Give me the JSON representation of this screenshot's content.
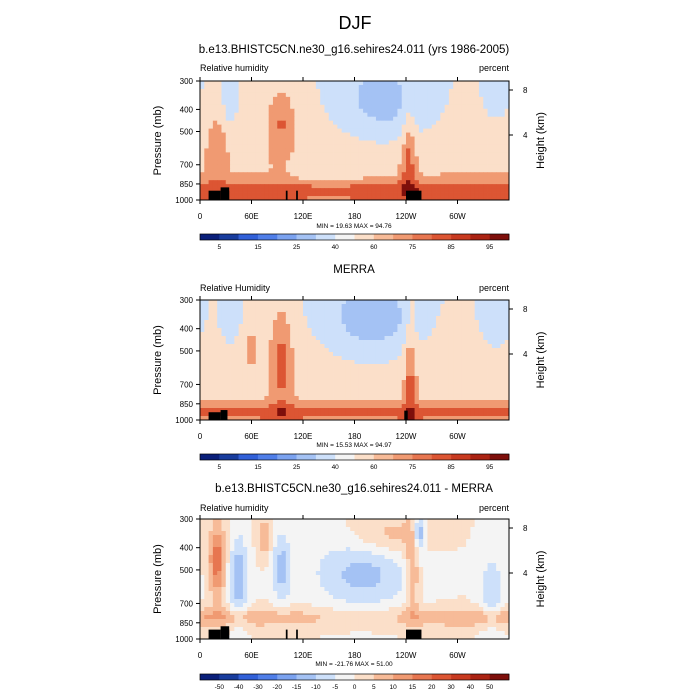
{
  "figure": {
    "title": "DJF"
  },
  "colorbar_colors": [
    "#0a1f7a",
    "#183d9e",
    "#3160d8",
    "#4f7ee8",
    "#7ba2ef",
    "#a4c2f4",
    "#cde0fa",
    "#f4f4f4",
    "#fbdfc9",
    "#f7bb98",
    "#f09a72",
    "#e77650",
    "#dc5533",
    "#c83a20",
    "#ab2313",
    "#7e0f0b"
  ],
  "panel_labels_common": {
    "ylabel_left": "Pressure (mb)",
    "ylabel_right": "Height (km)",
    "units": "percent"
  },
  "chart_data": [
    {
      "type": "heatmap",
      "title": "b.e13.BHISTC5CN.ne30_g16.sehires24.011 (yrs 1986-2005)",
      "subtitle_left": "Relative humidity",
      "subtitle_right": "percent",
      "xlabel": "",
      "ylabel": "Pressure (mb)",
      "ylabel_right": "Height (km)",
      "x_ticks": [
        "0",
        "60E",
        "120E",
        "180",
        "120W",
        "60W"
      ],
      "y_ticks": [
        "300",
        "400",
        "500",
        "700",
        "850",
        "1000"
      ],
      "y_ticks_right": [
        "8",
        "4"
      ],
      "stats": "MIN = 19.63  MAX = 94.76",
      "min": 19.63,
      "max": 94.76,
      "colorbar_labels": [
        "5",
        "15",
        "25",
        "40",
        "60",
        "75",
        "85",
        "95"
      ]
    },
    {
      "type": "heatmap",
      "title": "MERRA",
      "subtitle_left": "Relative Humidity",
      "subtitle_right": "percent",
      "xlabel": "",
      "ylabel": "Pressure (mb)",
      "ylabel_right": "Height (km)",
      "x_ticks": [
        "0",
        "60E",
        "120E",
        "180",
        "120W",
        "60W"
      ],
      "y_ticks": [
        "300",
        "400",
        "500",
        "700",
        "850",
        "1000"
      ],
      "y_ticks_right": [
        "8",
        "4"
      ],
      "stats": "MIN = 15.53  MAX = 94.97",
      "min": 15.53,
      "max": 94.97,
      "colorbar_labels": [
        "5",
        "15",
        "25",
        "40",
        "60",
        "75",
        "85",
        "95"
      ]
    },
    {
      "type": "heatmap",
      "title": "b.e13.BHISTC5CN.ne30_g16.sehires24.011 - MERRA",
      "subtitle_left": "Relative humidity",
      "subtitle_right": "percent",
      "xlabel": "",
      "ylabel": "Pressure (mb)",
      "ylabel_right": "Height (km)",
      "x_ticks": [
        "0",
        "60E",
        "120E",
        "180",
        "120W",
        "60W"
      ],
      "y_ticks": [
        "300",
        "400",
        "500",
        "700",
        "850",
        "1000"
      ],
      "y_ticks_right": [
        "8",
        "4"
      ],
      "stats": "MIN = -21.76  MAX = 51.00",
      "min": -21.76,
      "max": 51.0,
      "colorbar_labels": [
        "-50",
        "-40",
        "-30",
        "-20",
        "-15",
        "-10",
        "-5",
        "0",
        "5",
        "10",
        "15",
        "20",
        "30",
        "40",
        "50"
      ]
    }
  ]
}
